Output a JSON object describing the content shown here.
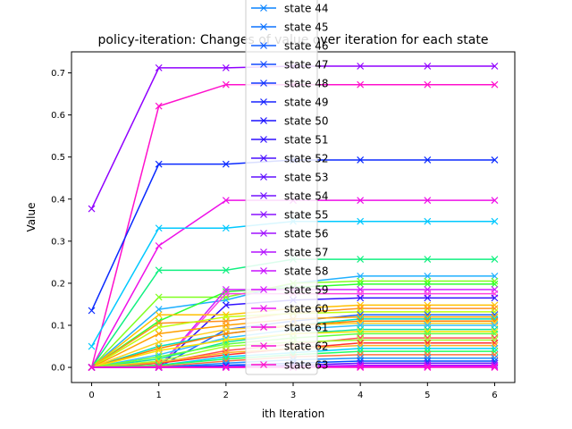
{
  "chart_data": {
    "type": "line",
    "title": "policy-iteration: Changes of value over iteration for each state",
    "xlabel": "ith Iteration",
    "ylabel": "Value",
    "x": [
      0,
      1,
      2,
      3,
      4,
      5,
      6
    ],
    "xlim": [
      -0.3,
      6.3
    ],
    "ylim": [
      -0.036,
      0.75
    ],
    "xticks": [
      "0",
      "1",
      "2",
      "3",
      "4",
      "5",
      "6"
    ],
    "yticks": [
      "0.0",
      "0.1",
      "0.2",
      "0.3",
      "0.4",
      "0.5",
      "0.6",
      "0.7"
    ],
    "ytick_values": [
      0,
      0.1,
      0.2,
      0.3,
      0.4,
      0.5,
      0.6,
      0.7
    ],
    "marker": "x",
    "grid": false,
    "legend_placement": "upper center",
    "legend_entries": [
      "state 44",
      "state 45",
      "state 46",
      "state 47",
      "state 48",
      "state 49",
      "state 50",
      "state 51",
      "state 52",
      "state 53",
      "state 54",
      "state 55",
      "state 56",
      "state 57",
      "state 58",
      "state 59",
      "state 60",
      "state 61",
      "state 62",
      "state 63"
    ],
    "legend_colors": [
      "#0a84ff",
      "#0d72ff",
      "#105eff",
      "#144aff",
      "#1236ff",
      "#1622ff",
      "#1a10ff",
      "#3010ff",
      "#4a10ff",
      "#6010ff",
      "#7410ff",
      "#8a10ff",
      "#a010ff",
      "#b410ff",
      "#c810ff",
      "#d810ff",
      "#e810f0",
      "#f010e0",
      "#f510d6",
      "#ff10cc"
    ],
    "series": [
      {
        "color": "#9000ff",
        "values": [
          0.377,
          0.712,
          0.712,
          0.716,
          0.716,
          0.716,
          0.716
        ]
      },
      {
        "color": "#ff10cc",
        "values": [
          0.0,
          0.621,
          0.672,
          0.672,
          0.672,
          0.672,
          0.672
        ]
      },
      {
        "color": "#0a2aff",
        "values": [
          0.135,
          0.483,
          0.483,
          0.493,
          0.493,
          0.493,
          0.493
        ]
      },
      {
        "color": "#ee10e8",
        "values": [
          0.0,
          0.289,
          0.397,
          0.397,
          0.397,
          0.397,
          0.397
        ]
      },
      {
        "color": "#00c8ff",
        "values": [
          0.05,
          0.331,
          0.331,
          0.347,
          0.347,
          0.347,
          0.347
        ]
      },
      {
        "color": "#10f080",
        "values": [
          0.0,
          0.231,
          0.231,
          0.257,
          0.257,
          0.257,
          0.257
        ]
      },
      {
        "color": "#20b0ff",
        "values": [
          0.0,
          0.138,
          0.16,
          0.2,
          0.217,
          0.217,
          0.217
        ]
      },
      {
        "color": "#80ff20",
        "values": [
          0.0,
          0.167,
          0.167,
          0.2,
          0.205,
          0.205,
          0.205
        ]
      },
      {
        "color": "#30ff30",
        "values": [
          0.0,
          0.11,
          0.18,
          0.19,
          0.198,
          0.198,
          0.198
        ]
      },
      {
        "color": "#d020ff",
        "values": [
          0.0,
          0.0,
          0.185,
          0.185,
          0.185,
          0.185,
          0.185
        ]
      },
      {
        "color": "#ff40e0",
        "values": [
          0.0,
          0.0,
          0.175,
          0.175,
          0.175,
          0.175,
          0.175
        ]
      },
      {
        "color": "#3010ff",
        "values": [
          0.0,
          0.0,
          0.148,
          0.16,
          0.165,
          0.165,
          0.165
        ]
      },
      {
        "color": "#ffc000",
        "values": [
          0.0,
          0.125,
          0.125,
          0.14,
          0.148,
          0.148,
          0.148
        ]
      },
      {
        "color": "#ff9020",
        "values": [
          0.0,
          0.105,
          0.11,
          0.13,
          0.14,
          0.14,
          0.14
        ]
      },
      {
        "color": "#c0ff10",
        "values": [
          0.0,
          0.095,
          0.12,
          0.128,
          0.132,
          0.132,
          0.132
        ]
      },
      {
        "color": "#2060ff",
        "values": [
          0.0,
          0.0,
          0.09,
          0.11,
          0.125,
          0.125,
          0.125
        ]
      },
      {
        "color": "#ffa000",
        "values": [
          0.0,
          0.08,
          0.1,
          0.115,
          0.12,
          0.12,
          0.12
        ]
      },
      {
        "color": "#00e0c0",
        "values": [
          0.0,
          0.05,
          0.08,
          0.1,
          0.115,
          0.115,
          0.115
        ]
      },
      {
        "color": "#ff8000",
        "values": [
          0.0,
          0.045,
          0.08,
          0.1,
          0.11,
          0.11,
          0.11
        ]
      },
      {
        "color": "#ffd020",
        "values": [
          0.0,
          0.06,
          0.09,
          0.1,
          0.105,
          0.105,
          0.105
        ]
      },
      {
        "color": "#30c0ff",
        "values": [
          0.0,
          0.03,
          0.07,
          0.09,
          0.1,
          0.1,
          0.1
        ]
      },
      {
        "color": "#10e0a0",
        "values": [
          0.0,
          0.02,
          0.06,
          0.08,
          0.09,
          0.09,
          0.09
        ]
      },
      {
        "color": "#ffe000",
        "values": [
          0.0,
          0.04,
          0.065,
          0.08,
          0.085,
          0.085,
          0.085
        ]
      },
      {
        "color": "#60ff40",
        "values": [
          0.0,
          0.025,
          0.055,
          0.07,
          0.08,
          0.08,
          0.08
        ]
      },
      {
        "color": "#ff5050",
        "values": [
          0.0,
          0.01,
          0.04,
          0.055,
          0.07,
          0.07,
          0.07
        ]
      },
      {
        "color": "#a0ff30",
        "values": [
          0.0,
          0.015,
          0.05,
          0.06,
          0.065,
          0.065,
          0.065
        ]
      },
      {
        "color": "#ff3030",
        "values": [
          0.0,
          0.01,
          0.03,
          0.045,
          0.058,
          0.058,
          0.058
        ]
      },
      {
        "color": "#ffb020",
        "values": [
          0.0,
          0.012,
          0.035,
          0.045,
          0.052,
          0.052,
          0.052
        ]
      },
      {
        "color": "#00d0ff",
        "values": [
          0.0,
          0.005,
          0.025,
          0.035,
          0.045,
          0.045,
          0.045
        ]
      },
      {
        "color": "#20ff60",
        "values": [
          0.0,
          0.005,
          0.02,
          0.03,
          0.038,
          0.038,
          0.038
        ]
      },
      {
        "color": "#ff7040",
        "values": [
          0.0,
          0.002,
          0.015,
          0.025,
          0.03,
          0.03,
          0.03
        ]
      },
      {
        "color": "#1e90ff",
        "values": [
          0.0,
          0.0,
          0.01,
          0.018,
          0.022,
          0.022,
          0.022
        ]
      },
      {
        "color": "#0050ff",
        "values": [
          0.0,
          0.0,
          0.005,
          0.01,
          0.015,
          0.015,
          0.015
        ]
      },
      {
        "color": "#6010ff",
        "values": [
          0.0,
          0.0,
          0.002,
          0.005,
          0.01,
          0.01,
          0.01
        ]
      },
      {
        "color": "#b010ff",
        "values": [
          0.0,
          0.0,
          0.0,
          0.002,
          0.005,
          0.005,
          0.005
        ]
      },
      {
        "color": "#e010ff",
        "values": [
          0.0,
          0.0,
          0.0,
          0.0,
          0.002,
          0.002,
          0.002
        ]
      },
      {
        "color": "#ff10cc",
        "values": [
          0.0,
          0.0,
          0.0,
          0.0,
          0.0,
          0.0,
          0.0
        ]
      }
    ]
  }
}
